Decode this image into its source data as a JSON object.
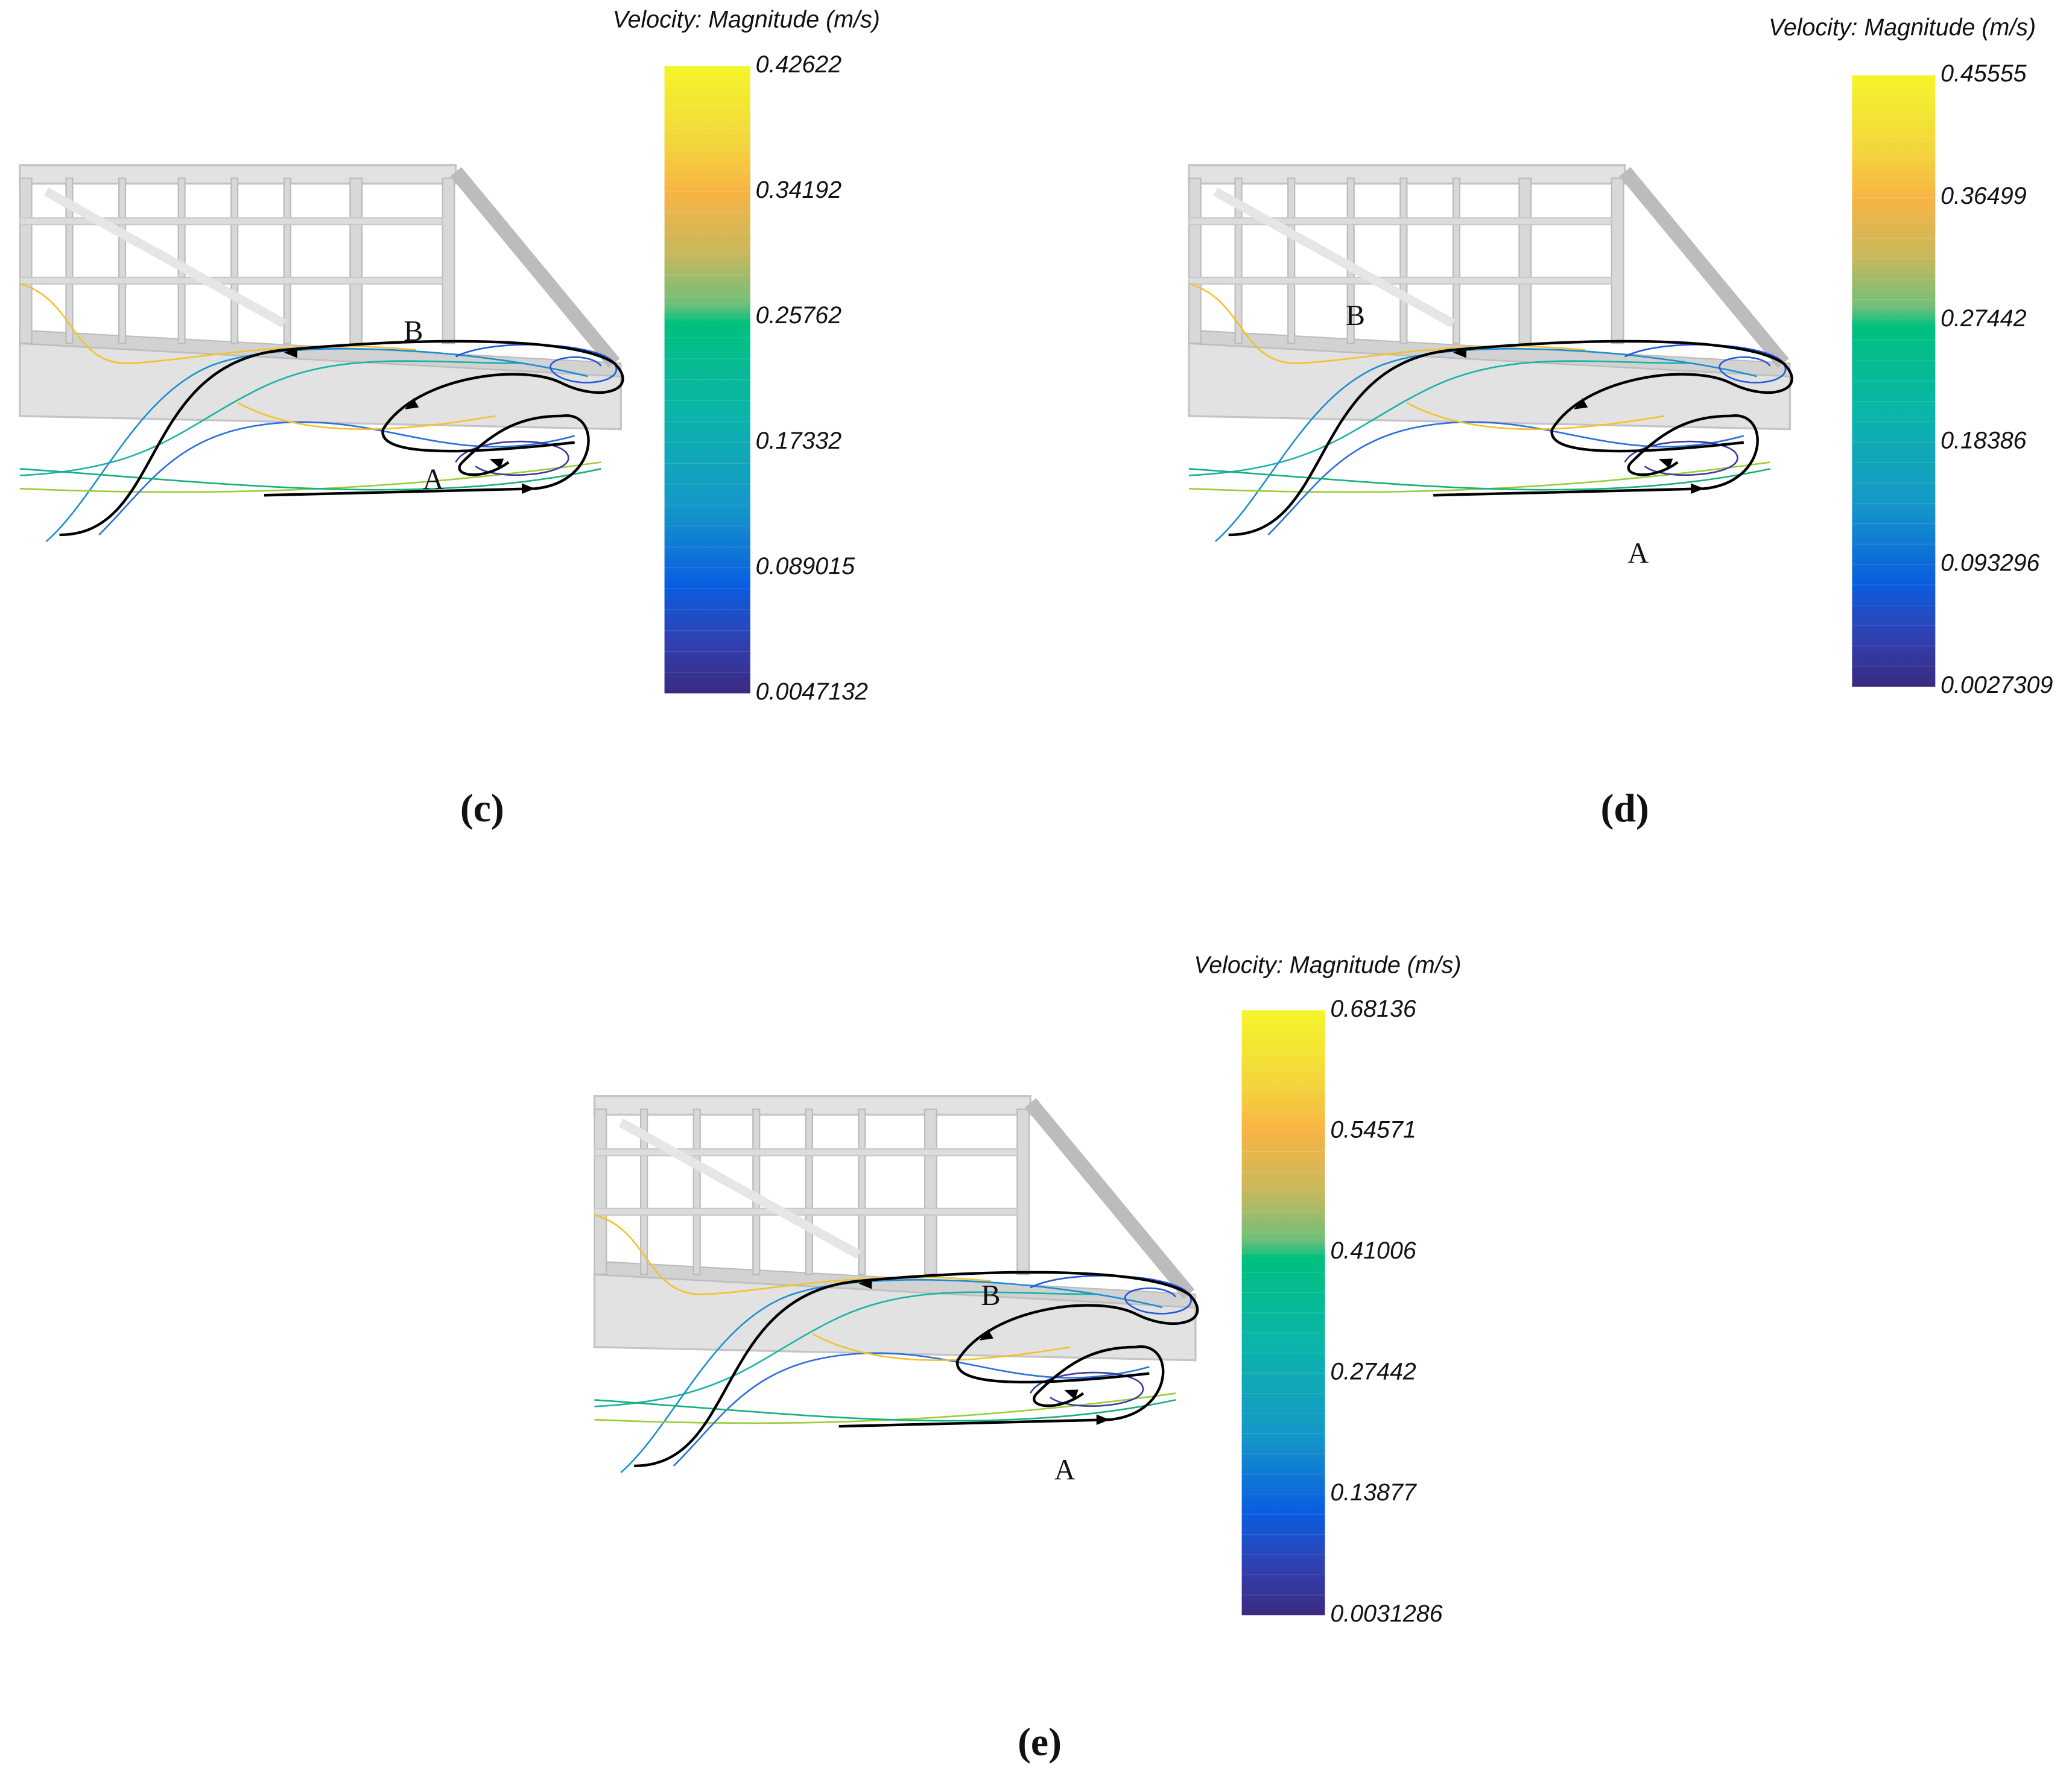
{
  "panels": [
    {
      "label": "(c)",
      "point_a": "A",
      "point_b": "B",
      "colorbar": {
        "title": "Velocity: Magnitude (m/s)",
        "ticks": [
          "0.42622",
          "0.34192",
          "0.25762",
          "0.17332",
          "0.089015",
          "0.0047132"
        ]
      }
    },
    {
      "label": "(d)",
      "point_a": "A",
      "point_b": "B",
      "colorbar": {
        "title": "Velocity: Magnitude (m/s)",
        "ticks": [
          "0.45555",
          "0.36499",
          "0.27442",
          "0.18386",
          "0.093296",
          "0.0027309"
        ]
      }
    },
    {
      "label": "(e)",
      "point_a": "A",
      "point_b": "B",
      "colorbar": {
        "title": "Velocity: Magnitude (m/s)",
        "ticks": [
          "0.68136",
          "0.54571",
          "0.41006",
          "0.27442",
          "0.13877",
          "0.0031286"
        ]
      }
    }
  ]
}
